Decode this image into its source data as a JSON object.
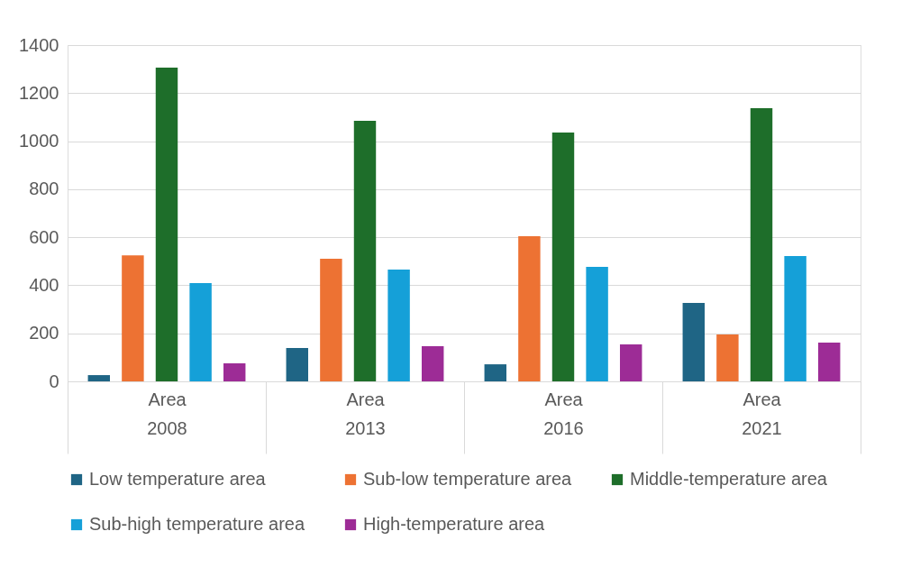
{
  "chart_data": {
    "type": "bar",
    "categories": [
      "Area\n2008",
      "Area\n2013",
      "Area\n2016",
      "Area\n2021"
    ],
    "series": [
      {
        "name": "Low temperature area",
        "color": "#1f6585",
        "values": [
          26,
          139,
          71,
          327
        ]
      },
      {
        "name": "Sub-low temperature area",
        "color": "#ed7233",
        "values": [
          525,
          510,
          604,
          195
        ]
      },
      {
        "name": "Middle-temperature area",
        "color": "#1e6e2a",
        "values": [
          1306,
          1085,
          1036,
          1137
        ]
      },
      {
        "name": "Sub-high temperature area",
        "color": "#15a0d8",
        "values": [
          409,
          465,
          477,
          522
        ]
      },
      {
        "name": "High-temperature area",
        "color": "#9d2c96",
        "values": [
          75,
          146,
          154,
          161
        ]
      }
    ],
    "ylim": [
      0,
      1400
    ],
    "yticks": [
      0,
      200,
      400,
      600,
      800,
      1000,
      1200,
      1400
    ],
    "grid": "y",
    "legend": "bottom"
  }
}
